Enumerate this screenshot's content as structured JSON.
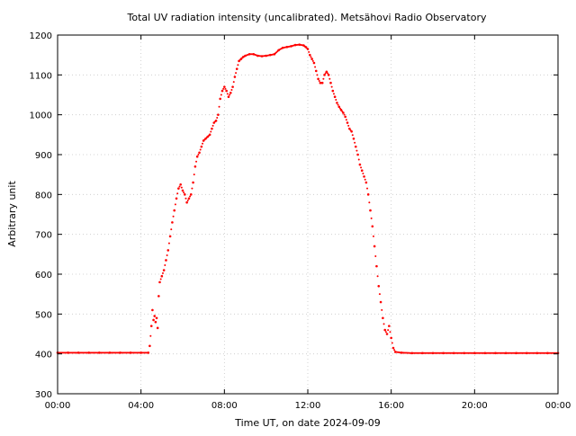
{
  "chart_data": {
    "type": "scatter",
    "title": "Total UV radiation intensity (uncalibrated). Metsähovi Radio Observatory",
    "xlabel": "Time UT, on date 2024-09-09",
    "ylabel": "Arbitrary unit",
    "xlim": [
      0,
      24
    ],
    "ylim": [
      300,
      1200
    ],
    "x_ticks": [
      {
        "value": 0,
        "label": "00:00"
      },
      {
        "value": 4,
        "label": "04:00"
      },
      {
        "value": 8,
        "label": "08:00"
      },
      {
        "value": 12,
        "label": "12:00"
      },
      {
        "value": 16,
        "label": "16:00"
      },
      {
        "value": 20,
        "label": "20:00"
      },
      {
        "value": 24,
        "label": "00:00"
      }
    ],
    "y_ticks": [
      {
        "value": 300,
        "label": "300"
      },
      {
        "value": 400,
        "label": "400"
      },
      {
        "value": 500,
        "label": "500"
      },
      {
        "value": 600,
        "label": "600"
      },
      {
        "value": 700,
        "label": "700"
      },
      {
        "value": 800,
        "label": "800"
      },
      {
        "value": 900,
        "label": "900"
      },
      {
        "value": 1000,
        "label": "1000"
      },
      {
        "value": 1100,
        "label": "1100"
      },
      {
        "value": 1200,
        "label": "1200"
      }
    ],
    "grid": true,
    "marker_color": "#ff0000",
    "series": [
      {
        "points": [
          [
            0.0,
            403
          ],
          [
            0.5,
            403
          ],
          [
            1.0,
            403
          ],
          [
            1.5,
            403
          ],
          [
            2.0,
            403
          ],
          [
            2.5,
            403
          ],
          [
            3.0,
            403
          ],
          [
            3.5,
            403
          ],
          [
            4.0,
            403
          ],
          [
            4.35,
            403
          ],
          [
            4.42,
            420
          ],
          [
            4.5,
            470
          ],
          [
            4.55,
            510
          ],
          [
            4.6,
            485
          ],
          [
            4.65,
            495
          ],
          [
            4.7,
            480
          ],
          [
            4.75,
            490
          ],
          [
            4.8,
            465
          ],
          [
            4.85,
            545
          ],
          [
            4.9,
            580
          ],
          [
            5.0,
            595
          ],
          [
            5.1,
            610
          ],
          [
            5.2,
            635
          ],
          [
            5.3,
            660
          ],
          [
            5.4,
            695
          ],
          [
            5.5,
            730
          ],
          [
            5.6,
            760
          ],
          [
            5.7,
            790
          ],
          [
            5.8,
            815
          ],
          [
            5.9,
            825
          ],
          [
            6.0,
            810
          ],
          [
            6.1,
            800
          ],
          [
            6.2,
            780
          ],
          [
            6.3,
            790
          ],
          [
            6.4,
            800
          ],
          [
            6.5,
            830
          ],
          [
            6.6,
            870
          ],
          [
            6.7,
            895
          ],
          [
            6.8,
            905
          ],
          [
            6.9,
            920
          ],
          [
            7.0,
            935
          ],
          [
            7.1,
            940
          ],
          [
            7.2,
            945
          ],
          [
            7.3,
            950
          ],
          [
            7.4,
            965
          ],
          [
            7.5,
            980
          ],
          [
            7.6,
            985
          ],
          [
            7.7,
            1000
          ],
          [
            7.8,
            1040
          ],
          [
            7.9,
            1060
          ],
          [
            8.0,
            1070
          ],
          [
            8.1,
            1060
          ],
          [
            8.2,
            1045
          ],
          [
            8.3,
            1055
          ],
          [
            8.4,
            1070
          ],
          [
            8.5,
            1095
          ],
          [
            8.6,
            1115
          ],
          [
            8.7,
            1135
          ],
          [
            8.8,
            1140
          ],
          [
            8.9,
            1145
          ],
          [
            9.0,
            1148
          ],
          [
            9.2,
            1152
          ],
          [
            9.4,
            1152
          ],
          [
            9.6,
            1148
          ],
          [
            9.8,
            1147
          ],
          [
            10.0,
            1148
          ],
          [
            10.2,
            1150
          ],
          [
            10.4,
            1152
          ],
          [
            10.6,
            1162
          ],
          [
            10.8,
            1168
          ],
          [
            11.0,
            1170
          ],
          [
            11.2,
            1172
          ],
          [
            11.4,
            1175
          ],
          [
            11.6,
            1176
          ],
          [
            11.8,
            1174
          ],
          [
            11.9,
            1170
          ],
          [
            12.0,
            1165
          ],
          [
            12.1,
            1150
          ],
          [
            12.2,
            1140
          ],
          [
            12.3,
            1130
          ],
          [
            12.4,
            1110
          ],
          [
            12.5,
            1090
          ],
          [
            12.6,
            1080
          ],
          [
            12.7,
            1080
          ],
          [
            12.8,
            1100
          ],
          [
            12.9,
            1108
          ],
          [
            13.0,
            1100
          ],
          [
            13.1,
            1080
          ],
          [
            13.2,
            1060
          ],
          [
            13.3,
            1045
          ],
          [
            13.4,
            1030
          ],
          [
            13.5,
            1020
          ],
          [
            13.6,
            1012
          ],
          [
            13.7,
            1005
          ],
          [
            13.8,
            995
          ],
          [
            13.9,
            980
          ],
          [
            14.0,
            965
          ],
          [
            14.1,
            958
          ],
          [
            14.2,
            940
          ],
          [
            14.3,
            920
          ],
          [
            14.4,
            900
          ],
          [
            14.5,
            875
          ],
          [
            14.6,
            860
          ],
          [
            14.7,
            845
          ],
          [
            14.8,
            830
          ],
          [
            14.9,
            800
          ],
          [
            15.0,
            760
          ],
          [
            15.1,
            720
          ],
          [
            15.2,
            670
          ],
          [
            15.3,
            620
          ],
          [
            15.4,
            570
          ],
          [
            15.5,
            530
          ],
          [
            15.6,
            490
          ],
          [
            15.7,
            460
          ],
          [
            15.8,
            450
          ],
          [
            15.9,
            470
          ],
          [
            16.0,
            440
          ],
          [
            16.1,
            415
          ],
          [
            16.2,
            405
          ],
          [
            16.5,
            403
          ],
          [
            17.0,
            402
          ],
          [
            17.5,
            402
          ],
          [
            18.0,
            402
          ],
          [
            18.5,
            402
          ],
          [
            19.0,
            402
          ],
          [
            19.5,
            402
          ],
          [
            20.0,
            402
          ],
          [
            20.5,
            402
          ],
          [
            21.0,
            402
          ],
          [
            21.5,
            402
          ],
          [
            22.0,
            402
          ],
          [
            22.5,
            402
          ],
          [
            23.0,
            402
          ],
          [
            23.5,
            402
          ],
          [
            24.0,
            402
          ]
        ]
      }
    ]
  }
}
